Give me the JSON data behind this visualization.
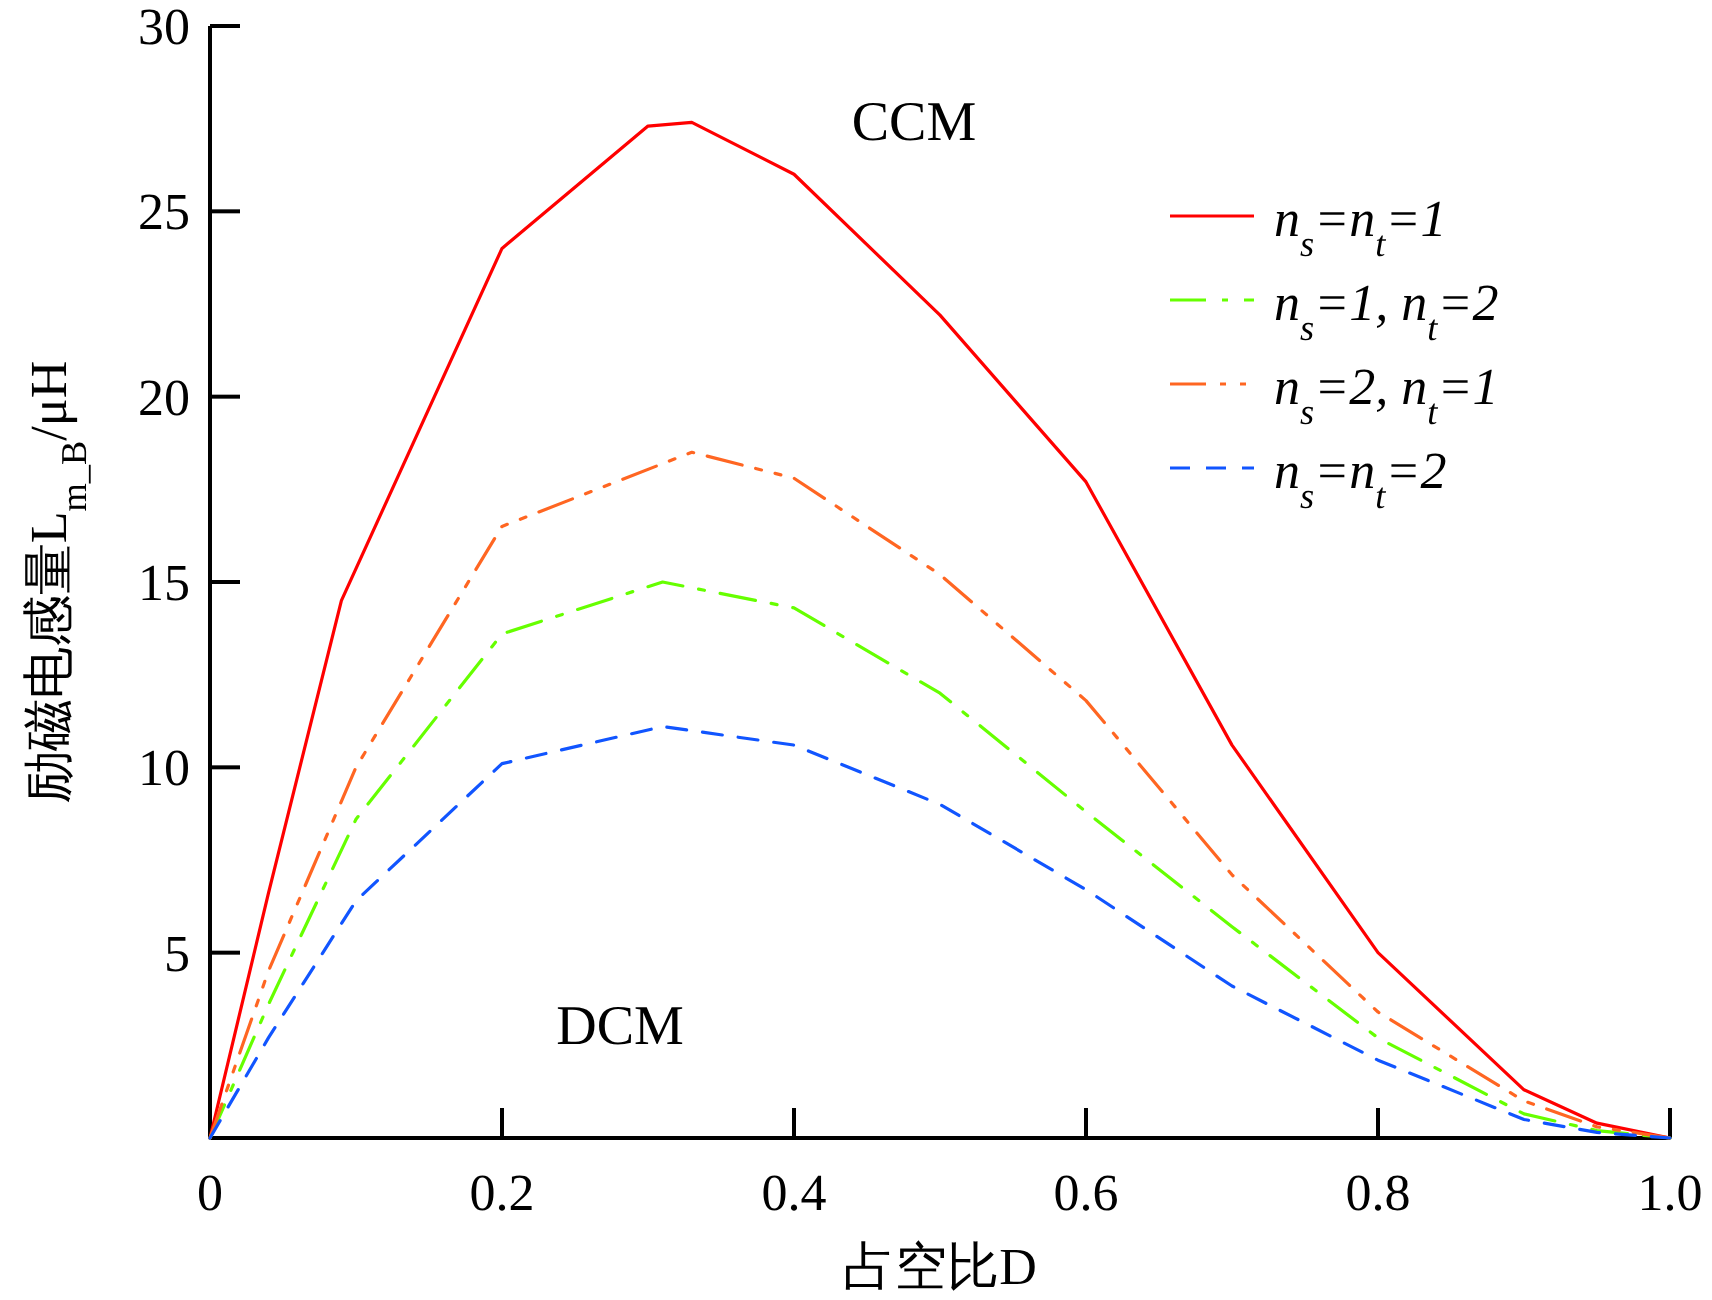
{
  "chart_data": {
    "type": "line",
    "xlabel": "占空比D",
    "ylabel": "励磁电感量L$_{m_B}$/μH",
    "xlim": [
      0,
      1.0
    ],
    "ylim": [
      0,
      30
    ],
    "xticks": [
      0,
      0.2,
      0.4,
      0.6,
      0.8,
      {
        "value": 1.0,
        "label": "1.0"
      }
    ],
    "yticks": [
      5,
      10,
      15,
      20,
      25,
      30
    ],
    "grid": false,
    "legend": "top right",
    "marker": "none",
    "annotations": [
      "CCM",
      "DCM"
    ],
    "series": [
      {
        "name": "n$_{s}$=n$_{t}$=1",
        "color": "#ff0000",
        "line_style": "solid",
        "x": [
          0,
          0.04,
          0.09,
          0.2,
          0.3,
          0.33,
          0.4,
          0.5,
          0.6,
          0.7,
          0.8,
          0.9,
          0.95,
          1.0
        ],
        "values": [
          0,
          6.6,
          14.5,
          24.0,
          27.3,
          27.4,
          26.0,
          22.2,
          17.7,
          10.6,
          5.0,
          1.3,
          0.4,
          0
        ]
      },
      {
        "name": "n$_{s}$=1, n$_{t}$=2",
        "color": "#66ff00",
        "line_style": "dashdot",
        "x": [
          0,
          0.04,
          0.1,
          0.2,
          0.31,
          0.4,
          0.5,
          0.6,
          0.7,
          0.8,
          0.9,
          0.95,
          1.0
        ],
        "values": [
          0,
          3.6,
          8.6,
          13.6,
          15.0,
          14.3,
          12.0,
          8.8,
          5.7,
          2.7,
          0.65,
          0.2,
          0
        ]
      },
      {
        "name": "n$_{s}$=2, n$_{t}$=1",
        "color": "#ff6622",
        "line_style": "dashdotdot",
        "x": [
          0,
          0.04,
          0.1,
          0.2,
          0.33,
          0.4,
          0.5,
          0.6,
          0.7,
          0.8,
          0.9,
          0.95,
          1.0
        ],
        "values": [
          0,
          4.5,
          10.0,
          16.5,
          18.5,
          17.8,
          15.2,
          11.8,
          7.1,
          3.4,
          1.0,
          0.3,
          0
        ]
      },
      {
        "name": "n$_{s}$=n$_{t}$=2",
        "color": "#1155ff",
        "line_style": "dashed",
        "x": [
          0,
          0.04,
          0.1,
          0.2,
          0.31,
          0.4,
          0.5,
          0.6,
          0.7,
          0.8,
          0.9,
          0.95,
          1.0
        ],
        "values": [
          0,
          2.7,
          6.4,
          10.1,
          11.1,
          10.6,
          9.0,
          6.7,
          4.1,
          2.1,
          0.5,
          0.15,
          0
        ]
      }
    ]
  }
}
